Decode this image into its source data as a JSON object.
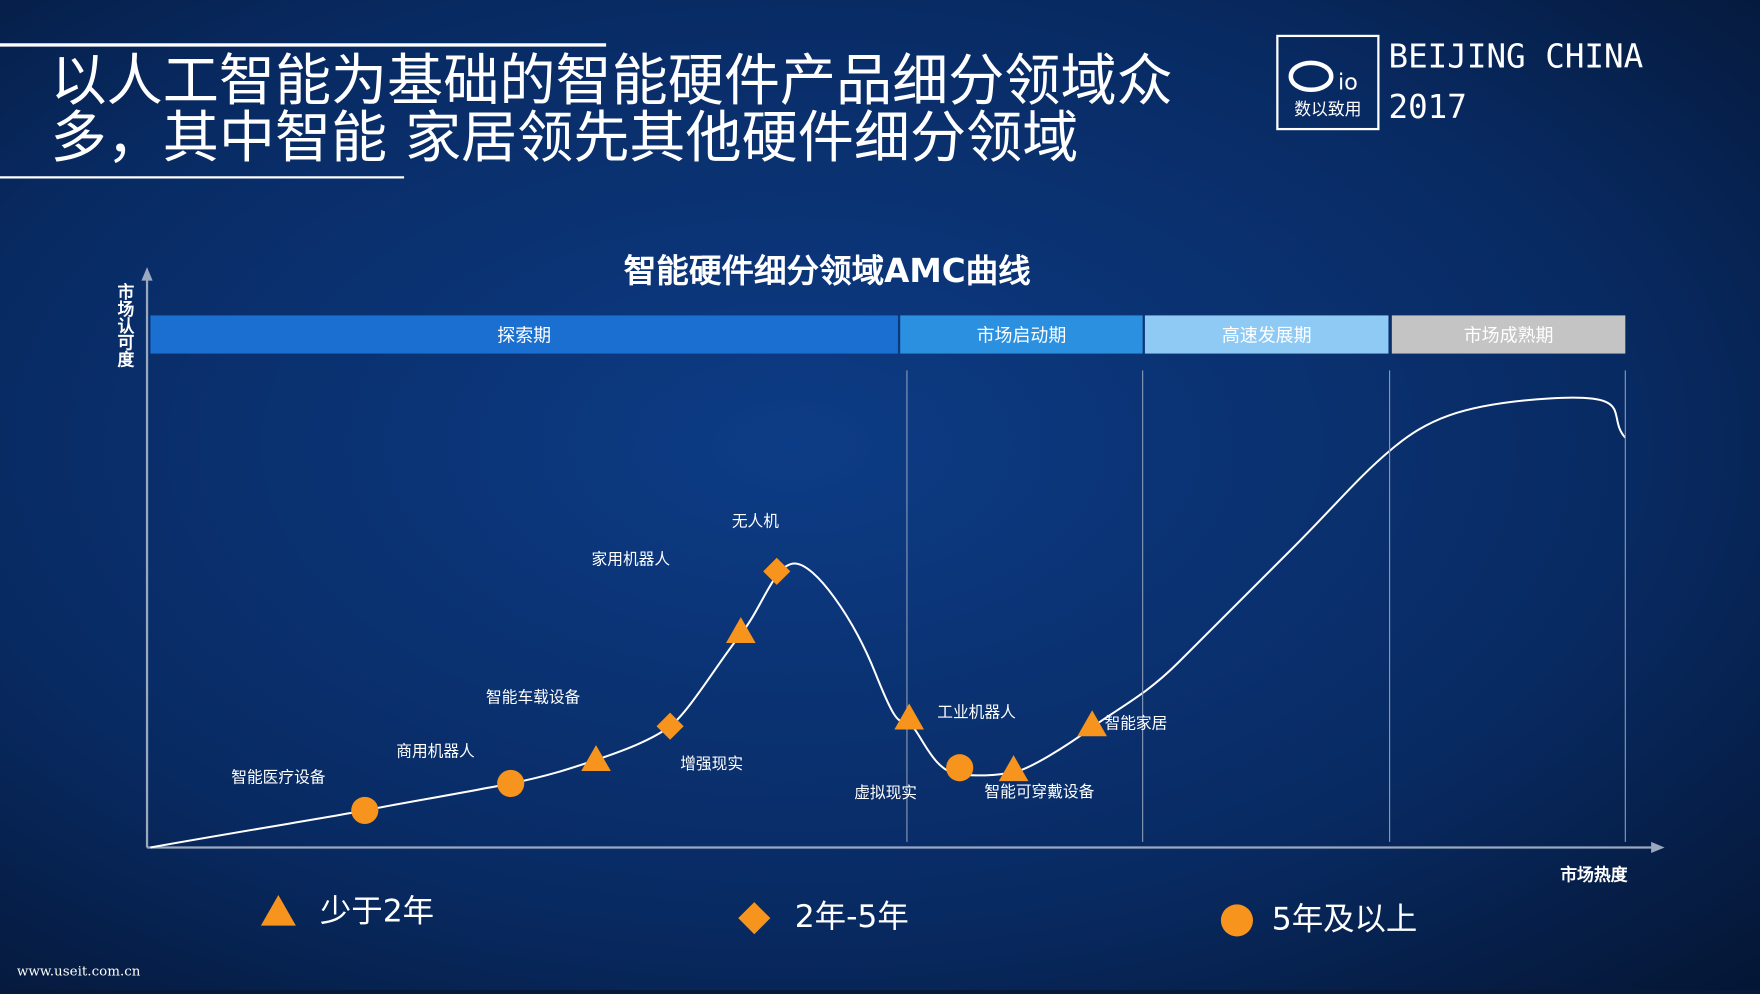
{
  "header": {
    "title_lines": [
      "以人工智能为基础的智能硬件产品细分领域众",
      "多，其中智能 家居领先其他硬件细分领域"
    ]
  },
  "logo": {
    "mark": "io",
    "caption": "数以致用",
    "place": "BEIJING CHINA",
    "year": "2017"
  },
  "diagram": {
    "title": "智能硬件细分领域AMC曲线",
    "y_axis_label": "市场认可度",
    "x_axis_label": "市场热度",
    "phases": [
      {
        "label": "探索期",
        "color": "#1a6fd0"
      },
      {
        "label": "市场启动期",
        "color": "#2b90e0"
      },
      {
        "label": "高速发展期",
        "color": "#8ecaf4"
      },
      {
        "label": "市场成熟期",
        "color": "#c4c4c4"
      }
    ],
    "marker_color": "#f7941d",
    "points": [
      {
        "label": "智能医疗设备",
        "shape": "circle"
      },
      {
        "label": "商用机器人",
        "shape": "circle"
      },
      {
        "label": "智能车载设备",
        "shape": "triangle"
      },
      {
        "label": "增强现实",
        "shape": "diamond"
      },
      {
        "label": "家用机器人",
        "shape": "triangle"
      },
      {
        "label": "无人机",
        "shape": "diamond"
      },
      {
        "label": "工业机器人",
        "shape": "triangle"
      },
      {
        "label": "虚拟现实",
        "shape": "circle"
      },
      {
        "label": "智能可穿戴设备",
        "shape": "triangle"
      },
      {
        "label": "智能家居",
        "shape": "triangle"
      }
    ],
    "legend": [
      {
        "shape": "triangle",
        "label": "少于2年"
      },
      {
        "shape": "diamond",
        "label": "2年-5年"
      },
      {
        "shape": "circle",
        "label": "5年及以上"
      }
    ]
  },
  "footer": {
    "watermark": "www.useit.com.cn"
  }
}
